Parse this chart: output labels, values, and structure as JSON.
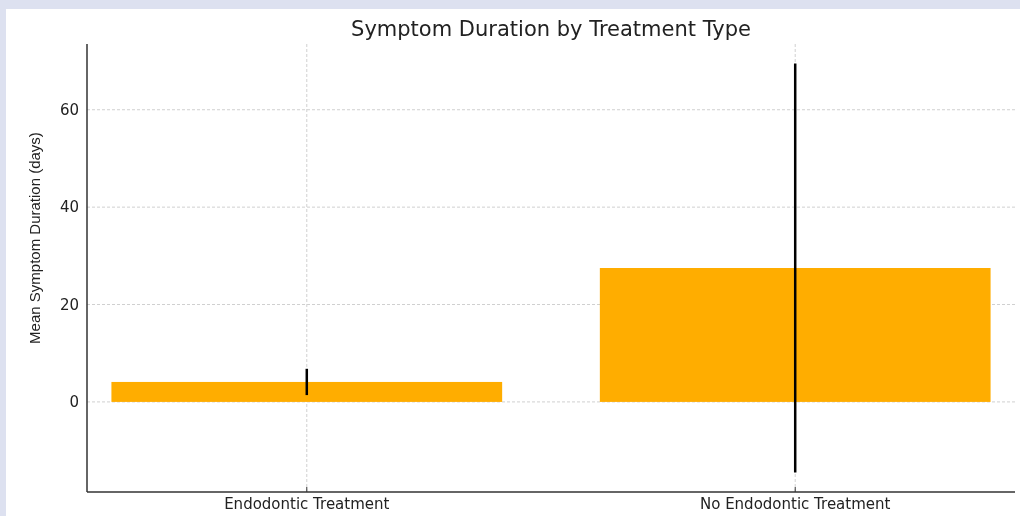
{
  "chart_data": {
    "type": "bar",
    "title": "Symptom Duration by Treatment Type",
    "ylabel": "Mean Symptom Duration (days)",
    "categories": [
      "Endodontic Treatment",
      "No Endodontic Treatment"
    ],
    "values": [
      4.1,
      27.5
    ],
    "errors": [
      2.7,
      42
    ],
    "color": "#ffad00",
    "ylim": [
      -18.5,
      73.5
    ],
    "yticks": [
      0,
      20,
      40,
      60
    ],
    "grid": true
  }
}
